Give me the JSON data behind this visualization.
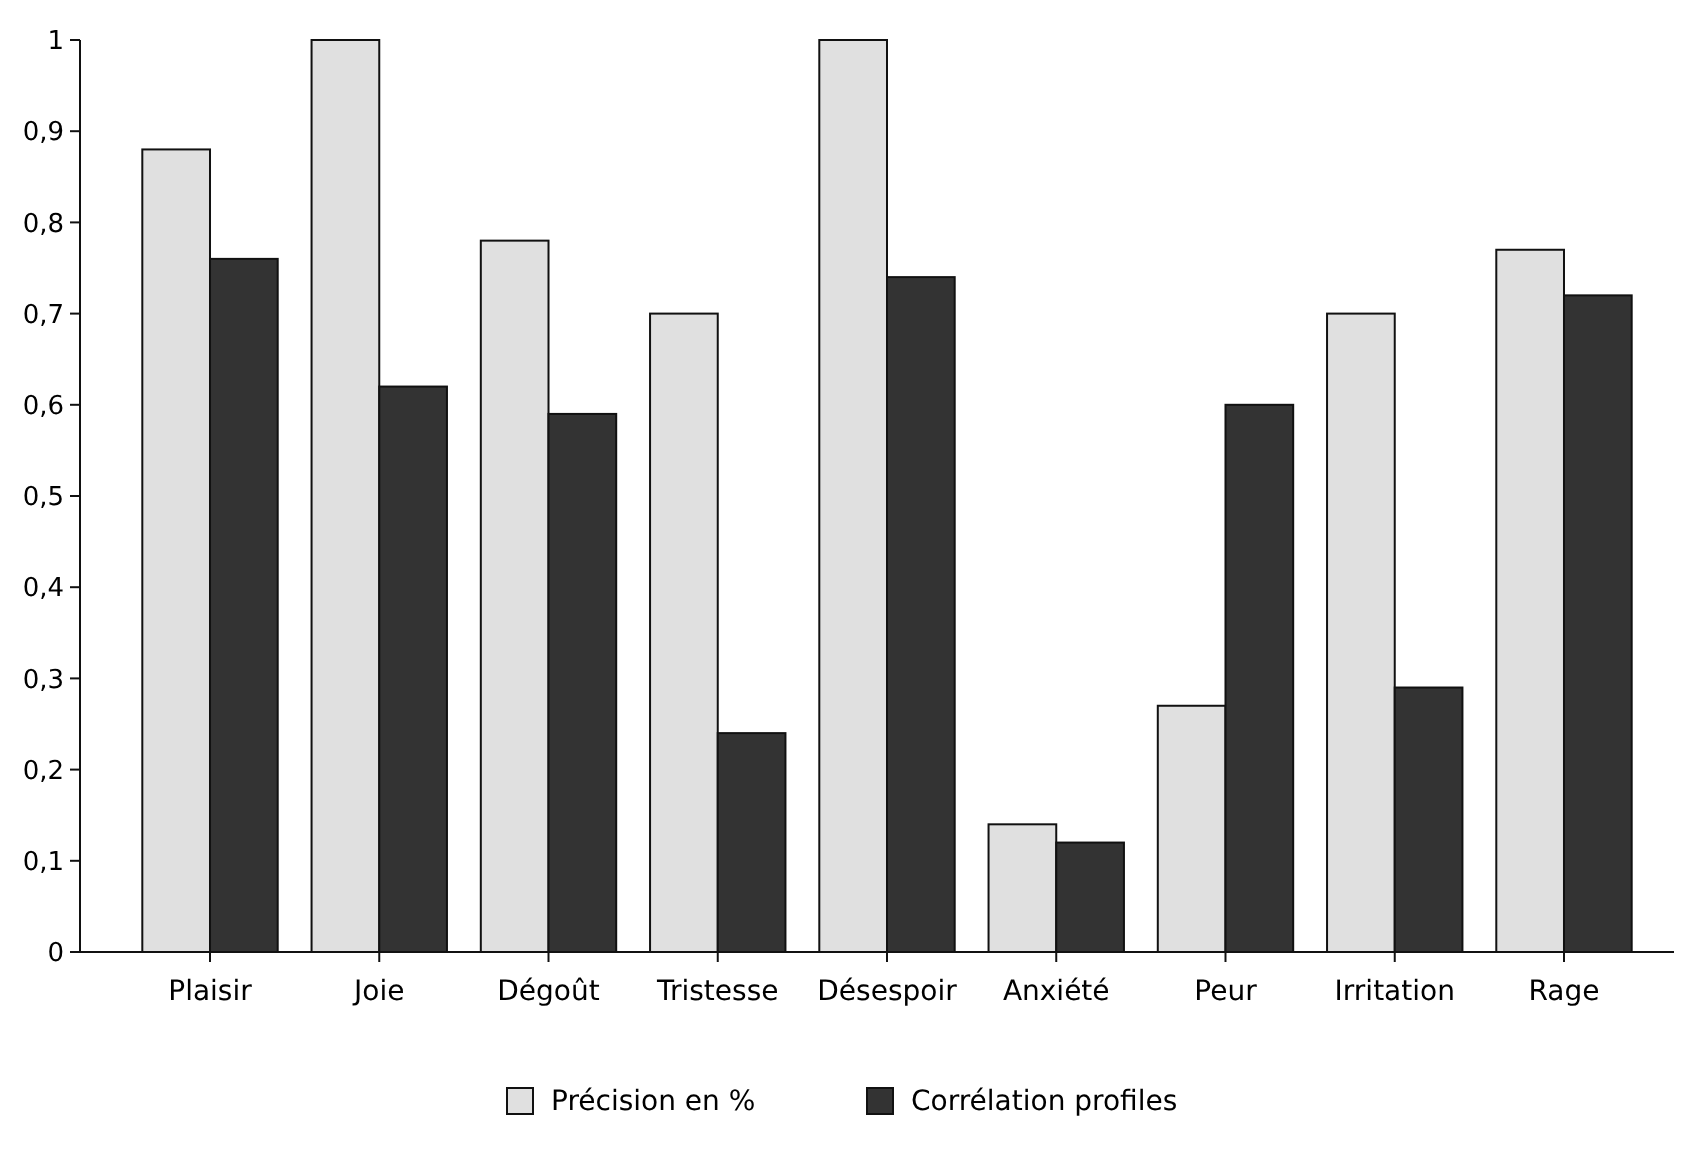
{
  "chart_data": {
    "type": "bar",
    "categories": [
      "Plaisir",
      "Joie",
      "Dégoût",
      "Tristesse",
      "Désespoir",
      "Anxiété",
      "Peur",
      "Irritation",
      "Rage"
    ],
    "series": [
      {
        "name": "Précision en %",
        "color": "#e0e0e0",
        "values": [
          0.88,
          1.0,
          0.78,
          0.7,
          1.0,
          0.14,
          0.27,
          0.7,
          0.77
        ]
      },
      {
        "name": "Corrélation profiles",
        "color": "#333333",
        "values": [
          0.76,
          0.62,
          0.59,
          0.24,
          0.74,
          0.12,
          0.6,
          0.29,
          0.72
        ]
      }
    ],
    "ylim": [
      0,
      1
    ],
    "yticks": [
      0,
      {
        "value": 0.1,
        "label": "0,1"
      },
      {
        "value": 0.2,
        "label": "0,2"
      },
      {
        "value": 0.3,
        "label": "0,3"
      },
      {
        "value": 0.4,
        "label": "0,4"
      },
      {
        "value": 0.5,
        "label": "0,5"
      },
      {
        "value": 0.6,
        "label": "0,6"
      },
      {
        "value": 0.7,
        "label": "0,7"
      },
      {
        "value": 0.8,
        "label": "0,8"
      },
      {
        "value": 0.9,
        "label": "0,9"
      },
      1
    ],
    "grid": false,
    "legend": "bottom"
  }
}
